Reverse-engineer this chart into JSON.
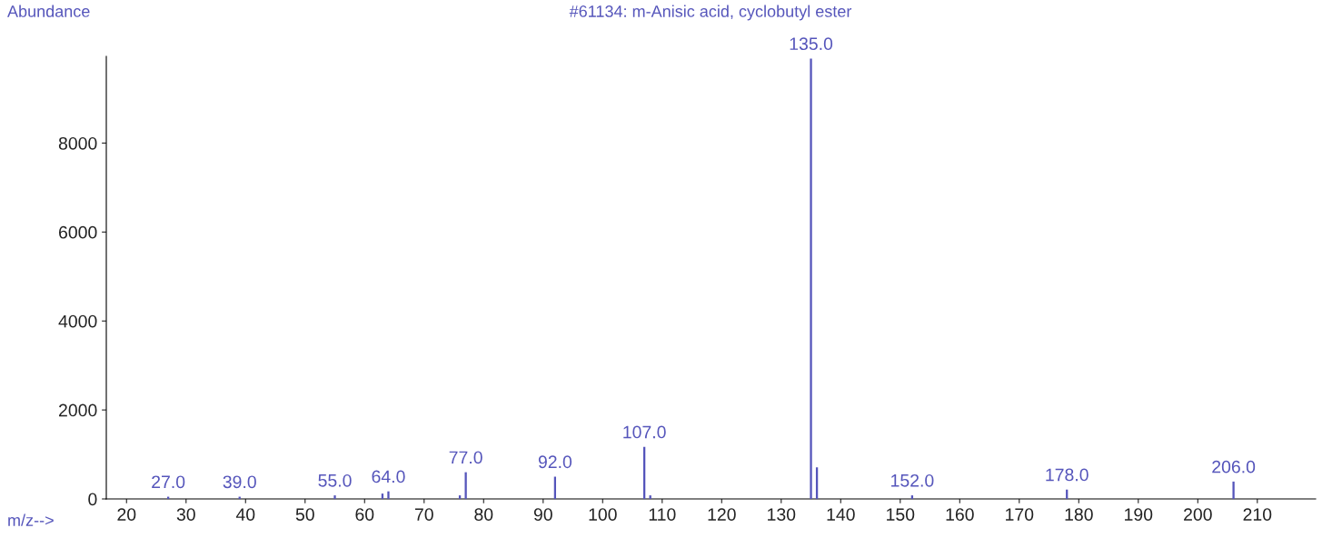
{
  "chart_data": {
    "type": "bar",
    "title": "#61134: m-Anisic acid, cyclobutyl ester",
    "xlabel": "m/z-->",
    "ylabel": "Abundance",
    "x": [
      27,
      39,
      55,
      63,
      64,
      76,
      77,
      92,
      107,
      108,
      135,
      136,
      152,
      178,
      206
    ],
    "values": [
      50,
      50,
      80,
      120,
      170,
      80,
      600,
      500,
      1170,
      80,
      9900,
      710,
      80,
      210,
      390
    ],
    "color": "#5555bb",
    "xlim": [
      16.6,
      219.8
    ],
    "ylim": [
      0,
      9950
    ],
    "xticks": [
      20,
      30,
      40,
      50,
      60,
      70,
      80,
      90,
      100,
      110,
      120,
      130,
      140,
      150,
      160,
      170,
      180,
      190,
      200,
      210
    ],
    "yticks": [
      0,
      2000,
      4000,
      6000,
      8000
    ],
    "grid": false,
    "legend": false,
    "annotations": [
      {
        "text": "27.0",
        "x": 27,
        "y": 50
      },
      {
        "text": "39.0",
        "x": 39,
        "y": 50
      },
      {
        "text": "55.0",
        "x": 55,
        "y": 80
      },
      {
        "text": "64.0",
        "x": 64,
        "y": 170
      },
      {
        "text": "77.0",
        "x": 77,
        "y": 600
      },
      {
        "text": "92.0",
        "x": 92,
        "y": 500
      },
      {
        "text": "107.0",
        "x": 107,
        "y": 1170
      },
      {
        "text": "135.0",
        "x": 135,
        "y": 9900
      },
      {
        "text": "152.0",
        "x": 152,
        "y": 80
      },
      {
        "text": "178.0",
        "x": 178,
        "y": 210
      },
      {
        "text": "206.0",
        "x": 206,
        "y": 390
      }
    ]
  }
}
